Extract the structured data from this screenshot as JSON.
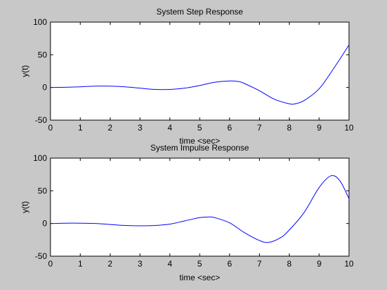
{
  "colors": {
    "figure_background": "#c8c8c8",
    "axes_background": "#ffffff",
    "line": "#0000ff",
    "axis": "#000000"
  },
  "chart_data": [
    {
      "type": "line",
      "title": "System Step Response",
      "xlabel": "time <sec>",
      "ylabel": "y(t)",
      "xlim": [
        0,
        10
      ],
      "ylim": [
        -50,
        100
      ],
      "xticks": [
        0,
        1,
        2,
        3,
        4,
        5,
        6,
        7,
        8,
        9,
        10
      ],
      "yticks": [
        -50,
        0,
        50,
        100
      ],
      "grid": false,
      "series": [
        {
          "x": [
            0,
            0.5,
            1,
            1.5,
            2,
            2.5,
            3,
            3.5,
            4,
            4.5,
            5,
            5.5,
            6,
            6.3,
            6.5,
            7,
            7.5,
            8,
            8.2,
            8.5,
            9,
            9.5,
            10
          ],
          "values": [
            0,
            0.3,
            1,
            2,
            2,
            1,
            -1,
            -3,
            -3,
            -1,
            3,
            8,
            10,
            9,
            6,
            -5,
            -18,
            -25,
            -25,
            -20,
            -2,
            30,
            65
          ]
        }
      ]
    },
    {
      "type": "line",
      "title": "System Impulse Response",
      "xlabel": "time <sec>",
      "ylabel": "y(t)",
      "xlim": [
        0,
        10
      ],
      "ylim": [
        -50,
        100
      ],
      "xticks": [
        0,
        1,
        2,
        3,
        4,
        5,
        6,
        7,
        8,
        9,
        10
      ],
      "yticks": [
        -50,
        0,
        50,
        100
      ],
      "grid": false,
      "series": [
        {
          "x": [
            0,
            0.5,
            1,
            1.5,
            2,
            2.5,
            3,
            3.5,
            4,
            4.5,
            5,
            5.3,
            5.5,
            6,
            6.5,
            7,
            7.3,
            7.7,
            8,
            8.5,
            9,
            9.4,
            9.7,
            10
          ],
          "values": [
            0,
            0.5,
            0.5,
            0,
            -1.5,
            -3,
            -3.5,
            -3,
            -1,
            4,
            9,
            10,
            9,
            1,
            -14,
            -26,
            -29,
            -22,
            -10,
            17,
            55,
            73,
            65,
            38
          ]
        }
      ]
    }
  ]
}
